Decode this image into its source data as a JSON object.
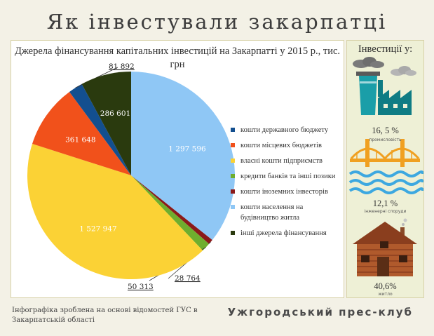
{
  "page": {
    "title": "Як інвестували закарпатці",
    "footer_note": "Інфографіка зроблена на основі відомостей ГУС в Закарпатській області",
    "footer_brand": "Ужгородський прес-клуб"
  },
  "chart_data": {
    "type": "pie",
    "title": "Джерела фінансування капітальних інвестицій на Закарпатті у 2015 р., тис. грн",
    "start_angle_deg": 0,
    "direction": "clockwise",
    "series": [
      {
        "name": "кошти населення на будівництво житла",
        "value": 1297596,
        "label": "1 297 596",
        "color": "#8fc7f5",
        "label_style": "inside"
      },
      {
        "name": "кошти іноземних інвесторів",
        "value": 28764,
        "label": "28 764",
        "color": "#8b1a1a",
        "label_style": "outside"
      },
      {
        "name": "кредити банків та інші позики",
        "value": 50313,
        "label": "50 313",
        "color": "#6fae2e",
        "label_style": "outside"
      },
      {
        "name": "власні кошти підприємств",
        "value": 1527947,
        "label": "1 527 947",
        "color": "#fbd235",
        "label_style": "inside"
      },
      {
        "name": "кошти місцевих бюджетів",
        "value": 361648,
        "label": "361 648",
        "color": "#f1511b",
        "label_style": "inside"
      },
      {
        "name": "кошти державного бюджету",
        "value": 81892,
        "label": "81 892",
        "color": "#134f8f",
        "label_style": "outside"
      },
      {
        "name": "інші джерела фінансування",
        "value": 286601,
        "label": "286 601",
        "color": "#2a3a0e",
        "label_style": "inside"
      }
    ],
    "legend_order": [
      "кошти державного бюджету",
      "кошти місцевих бюджетів",
      "власні кошти підприємств",
      "кредити банків та інші позики",
      "кошти іноземних інвесторів",
      "кошти населення на будівництво житла",
      "інші джерела фінансування"
    ],
    "legend_placement": "right"
  },
  "side": {
    "title": "Інвестиції у:",
    "items": [
      {
        "percent": "16, 5 %",
        "label": "промисловість",
        "icon": "factory-icon"
      },
      {
        "percent": "12,1 %",
        "label": "інженерні споруди",
        "icon": "bridge-icon"
      },
      {
        "percent": "40,6%",
        "label": "житло",
        "icon": "house-icon"
      }
    ]
  }
}
